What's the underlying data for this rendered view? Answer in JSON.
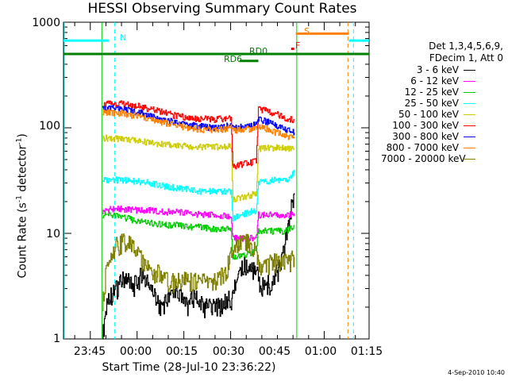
{
  "chart_data": {
    "type": "line",
    "title": "HESSI Observing Summary Count Rates",
    "xlabel": "Start Time (28-Jul-10 23:36:22)",
    "ylabel": "Count Rate (s",
    "ylabel_sup": "-1",
    "ylabel_rest": " detector",
    "ylabel_sup2": "-1",
    "ylabel_end": ")",
    "print_date": "4-Sep-2010 10:40",
    "y_scale": "log",
    "xlim_minutes": [
      0,
      98
    ],
    "ylim": [
      1,
      1000
    ],
    "x_ticks": [
      {
        "label": "23:45",
        "minutes": 8.6
      },
      {
        "label": "00:00",
        "minutes": 23.6
      },
      {
        "label": "00:15",
        "minutes": 38.6
      },
      {
        "label": "00:30",
        "minutes": 53.6
      },
      {
        "label": "00:45",
        "minutes": 68.6
      },
      {
        "label": "01:00",
        "minutes": 83.6
      },
      {
        "label": "01:15",
        "minutes": 98.6
      }
    ],
    "y_ticks": [
      {
        "label": "1",
        "value": 1
      },
      {
        "label": "10",
        "value": 10
      },
      {
        "label": "100",
        "value": 100
      },
      {
        "label": "1000",
        "value": 1000
      }
    ],
    "legend_header": [
      "Det 1,3,4,5,6,9,",
      "FDecim 1, Att 0"
    ],
    "series": [
      {
        "name": "3 - 6 keV",
        "color": "#000000",
        "x": [
          12.5,
          13.5,
          15,
          17,
          20,
          22,
          25,
          28,
          31,
          34,
          36,
          39,
          42,
          45,
          48,
          51,
          52.5,
          53.8,
          54.5,
          56,
          58,
          60,
          61.5,
          62.5,
          63.5,
          65,
          66.5,
          68,
          69.5,
          71,
          72.5,
          74
        ],
        "y": [
          1.0,
          2.0,
          2.5,
          3.0,
          4.0,
          3.0,
          4.0,
          3.0,
          2.0,
          2.5,
          3.0,
          2.0,
          2.5,
          2.0,
          2.0,
          2.0,
          2.5,
          2.0,
          3.0,
          4.0,
          5.0,
          5.0,
          4.0,
          4.0,
          3.0,
          3.5,
          3.0,
          4.0,
          5.0,
          8.0,
          14.0,
          24.0
        ]
      },
      {
        "name": "6 - 12 keV",
        "color": "#ff00ff",
        "x": [
          12.5,
          15,
          20,
          24,
          28,
          32,
          36,
          40,
          44,
          48,
          52,
          53.7,
          54.3,
          57,
          60,
          61.8,
          62.5,
          65,
          68,
          71,
          72.5,
          74
        ],
        "y": [
          16,
          17,
          17,
          16.5,
          16.5,
          16,
          16,
          15.5,
          15,
          15,
          14.5,
          14,
          9,
          9,
          9,
          9,
          15,
          15,
          15,
          15,
          15,
          15.5
        ]
      },
      {
        "name": "12 - 25 keV",
        "color": "#00cc00",
        "x": [
          12.5,
          15,
          20,
          24,
          28,
          32,
          36,
          40,
          44,
          48,
          52,
          53.7,
          54.3,
          57,
          60,
          61.8,
          62.5,
          65,
          68,
          71,
          72.5,
          74
        ],
        "y": [
          15,
          15,
          14,
          13,
          12.5,
          12,
          12,
          11.5,
          11.5,
          11,
          11,
          11,
          6,
          6,
          6.5,
          7,
          10.5,
          10.5,
          10.5,
          10.5,
          11,
          12
        ]
      },
      {
        "name": "25 - 50 keV",
        "color": "#00ffff",
        "x": [
          12.5,
          15,
          20,
          24,
          28,
          32,
          36,
          40,
          44,
          48,
          52,
          53.7,
          54.3,
          57,
          60,
          61.8,
          62.5,
          65,
          68,
          71,
          72.5,
          74
        ],
        "y": [
          32,
          32,
          32,
          31,
          30,
          28,
          27,
          26,
          25,
          25,
          25,
          25,
          14,
          15,
          16,
          16.5,
          30,
          31,
          32,
          32,
          33,
          38
        ]
      },
      {
        "name": "50 - 100 keV",
        "color": "#cccc00",
        "x": [
          12.5,
          15,
          20,
          24,
          28,
          32,
          36,
          40,
          44,
          48,
          52,
          53.7,
          54.3,
          57,
          60,
          61.8,
          62.5,
          65,
          68,
          71,
          72.5,
          74
        ],
        "y": [
          80,
          80,
          78,
          75,
          72,
          70,
          68,
          67,
          66,
          66,
          67,
          67,
          21,
          22,
          23,
          24,
          63,
          64,
          65,
          64,
          63,
          62
        ]
      },
      {
        "name": "100 - 300 keV",
        "color": "#ff0000",
        "x": [
          12.5,
          15,
          20,
          24,
          28,
          32,
          36,
          40,
          44,
          48,
          52,
          53.7,
          54.3,
          57,
          60,
          61.8,
          62.5,
          65,
          68,
          71,
          72.5,
          74
        ],
        "y": [
          165,
          170,
          168,
          160,
          150,
          140,
          130,
          125,
          122,
          120,
          122,
          125,
          42,
          45,
          47,
          48,
          150,
          145,
          135,
          125,
          120,
          118
        ]
      },
      {
        "name": "300 - 800 keV",
        "color": "#0000ff",
        "x": [
          12.5,
          15,
          20,
          24,
          28,
          32,
          36,
          40,
          44,
          48,
          52,
          53.7,
          54.3,
          57,
          60,
          61.8,
          62.5,
          65,
          68,
          71,
          72.5,
          74
        ],
        "y": [
          150,
          155,
          150,
          140,
          130,
          120,
          112,
          107,
          103,
          100,
          103,
          105,
          100,
          102,
          105,
          108,
          120,
          115,
          105,
          98,
          93,
          90
        ]
      },
      {
        "name": "800 - 7000 keV",
        "color": "#ff8000",
        "x": [
          12.5,
          15,
          20,
          24,
          28,
          32,
          36,
          40,
          44,
          48,
          52,
          53.7,
          54.3,
          57,
          60,
          61.8,
          62.5,
          65,
          68,
          71,
          72.5,
          74
        ],
        "y": [
          140,
          140,
          135,
          128,
          120,
          112,
          105,
          100,
          97,
          95,
          98,
          100,
          95,
          96,
          98,
          100,
          103,
          98,
          90,
          85,
          82,
          80
        ]
      },
      {
        "name": "7000 - 20000 keV",
        "color": "#808000",
        "x": [
          12.5,
          13.5,
          15,
          17,
          19,
          21,
          23,
          25,
          28,
          31,
          34,
          37,
          40,
          43,
          46,
          49,
          52,
          53.7,
          55,
          57,
          59,
          61,
          61.8,
          62.5,
          65,
          67,
          69,
          71,
          72.5,
          74
        ],
        "y": [
          2.0,
          4.0,
          6.0,
          7.5,
          8.5,
          8.0,
          7.0,
          5.5,
          4.5,
          4.0,
          3.5,
          3.5,
          3.5,
          3.5,
          3.5,
          3.5,
          4.5,
          6.0,
          7.0,
          8.0,
          8.0,
          7.0,
          6.0,
          5.0,
          5.0,
          5.5,
          5.0,
          5.5,
          5.5,
          6.0
        ]
      }
    ],
    "annotations": [
      {
        "label": "N",
        "color": "#00ffff",
        "type": "night",
        "segments": [
          [
            0,
            14.5
          ],
          [
            91.5,
            98
          ]
        ],
        "level": 670,
        "dashed_x": [
          16.4,
          93
        ]
      },
      {
        "label": "S",
        "color": "#ff8000",
        "type": "saa",
        "segments": [
          [
            74.5,
            91.5
          ]
        ],
        "level": 780,
        "dashed_x": [
          91.2
        ]
      },
      {
        "label": "F",
        "color": "#ff0000",
        "type": "flare",
        "segments": [
          [
            73,
            74
          ]
        ],
        "level": 560
      },
      {
        "label": "RD0",
        "color": "#008000",
        "type": "decimation",
        "segments": [
          [
            0,
            98
          ]
        ],
        "level": 500
      },
      {
        "label": "RD6",
        "color": "#008000",
        "type": "decimation",
        "segments": [
          [
            56.5,
            62.5
          ]
        ],
        "level": 430
      }
    ],
    "vertical_markers": [
      {
        "minutes": 12.3,
        "color": "#00cc00"
      },
      {
        "minutes": 74.8,
        "color": "#00cc00"
      }
    ],
    "grid": false,
    "legend_position": "right"
  }
}
